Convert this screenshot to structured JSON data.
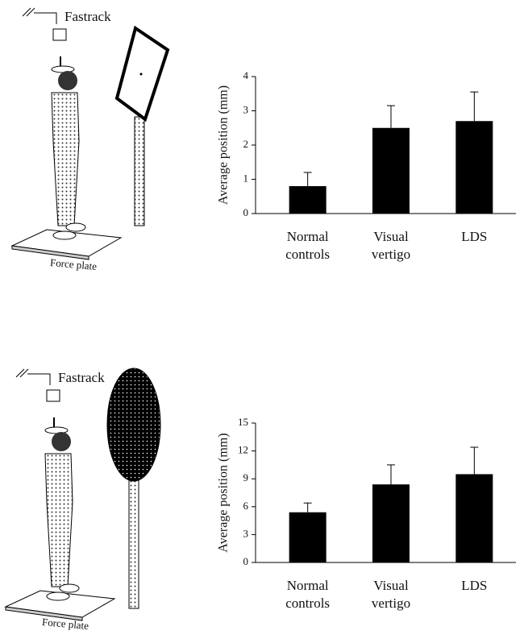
{
  "chart_data": [
    {
      "type": "bar",
      "ylabel": "Average  position (mm)",
      "categories": [
        "Normal controls",
        "Visual vertigo",
        "LDS"
      ],
      "values": [
        0.8,
        2.5,
        2.7
      ],
      "errors": [
        0.4,
        0.65,
        0.85
      ],
      "color": "#000000",
      "ylim": [
        0,
        4
      ],
      "yticks": [
        0,
        1,
        2,
        3,
        4
      ]
    },
    {
      "type": "bar",
      "ylabel": "Average  position (mm)",
      "categories": [
        "Normal controls",
        "Visual vertigo",
        "LDS"
      ],
      "values": [
        5.4,
        8.4,
        9.5
      ],
      "errors": [
        1.0,
        2.1,
        2.9
      ],
      "color": "#000000",
      "ylim": [
        0,
        15
      ],
      "yticks": [
        0,
        3,
        6,
        9,
        12,
        15
      ]
    }
  ],
  "illustrations": [
    {
      "sensor_label": "Fastrack",
      "plate_label": "Force plate"
    },
    {
      "sensor_label": "Fastrack",
      "plate_label": "Force plate"
    }
  ]
}
